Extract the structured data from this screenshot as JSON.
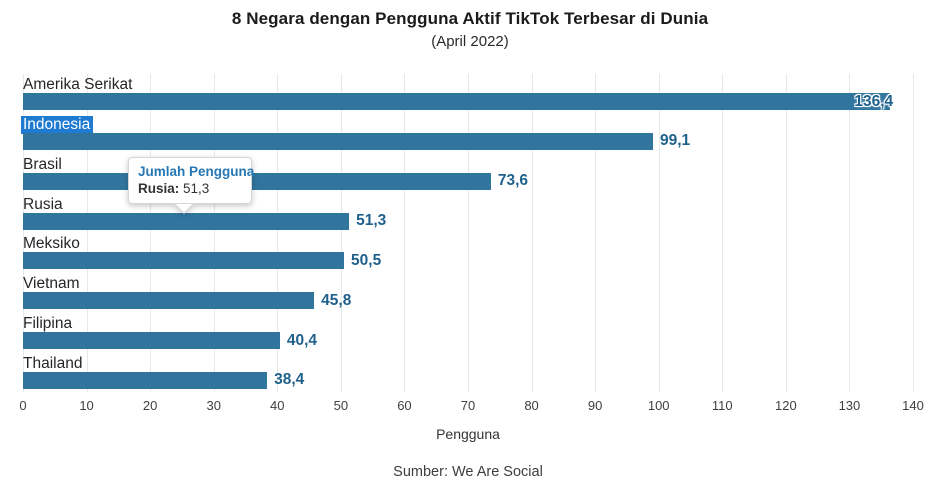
{
  "header": {
    "title": "8 Negara dengan Pengguna Aktif TikTok Terbesar di Dunia",
    "subtitle": "(April 2022)"
  },
  "chart_data": {
    "type": "bar",
    "orientation": "horizontal",
    "title": "8 Negara dengan Pengguna Aktif TikTok Terbesar di Dunia",
    "subtitle": "(April 2022)",
    "categories": [
      "Amerika Serikat",
      "Indonesia",
      "Brasil",
      "Rusia",
      "Meksiko",
      "Vietnam",
      "Filipina",
      "Thailand"
    ],
    "values": [
      136.4,
      99.1,
      73.6,
      51.3,
      50.5,
      45.8,
      40.4,
      38.4
    ],
    "value_labels": [
      "136,4",
      "99,1",
      "73,6",
      "51,3",
      "50,5",
      "45,8",
      "40,4",
      "38,4"
    ],
    "xlabel": "Pengguna",
    "ylabel": "",
    "xlim": [
      0,
      140
    ],
    "xticks": [
      0,
      10,
      20,
      30,
      40,
      50,
      60,
      70,
      80,
      90,
      100,
      110,
      120,
      130,
      140
    ],
    "grid": "vertical",
    "legend": "none",
    "first_value_label_inside": true
  },
  "selection": {
    "selected_category": "Indonesia",
    "highlight_color": "#1f7ad1"
  },
  "tooltip": {
    "title": "Jumlah Pengguna",
    "label_bold": "Rusia:",
    "value": "51,3"
  },
  "source": {
    "text": "Sumber: We Are Social"
  },
  "colors": {
    "bar": "#31759f",
    "value_label": "#20618c",
    "gridline": "#e8e8e8",
    "tooltip_title": "#2578b5"
  }
}
